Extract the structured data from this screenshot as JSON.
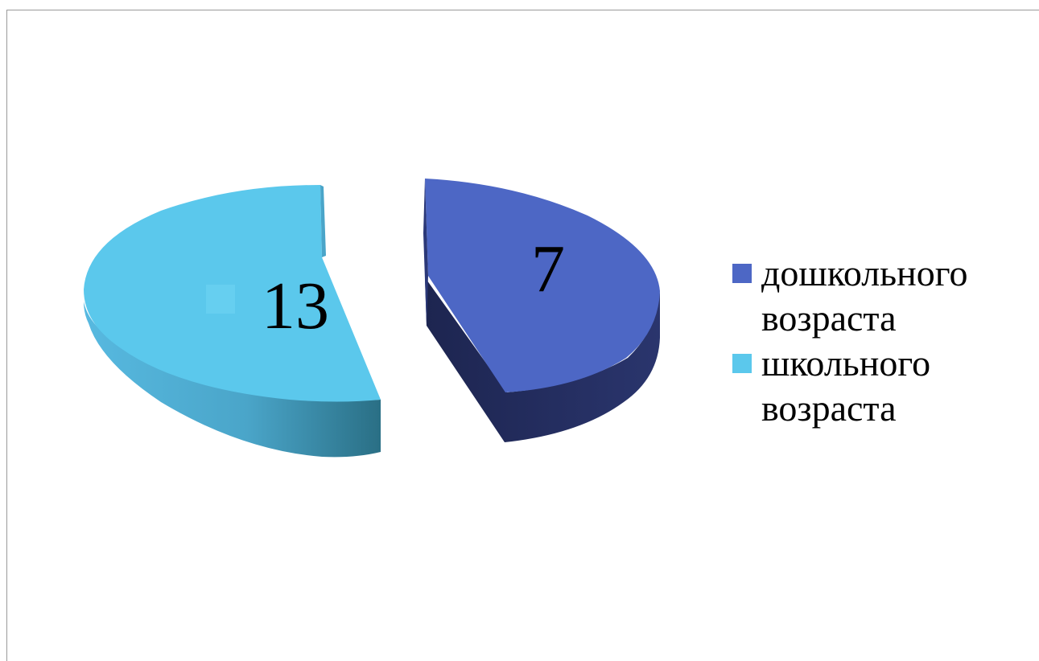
{
  "chart_data": {
    "type": "pie",
    "title": "",
    "slices": [
      {
        "label": "дошкольного возраста",
        "value": 7,
        "color": "#4d67c5",
        "side_color": "#222a5a"
      },
      {
        "label": "школьного возраста",
        "value": 13,
        "color": "#5bc8ec",
        "side_color": "#3a8fb0"
      }
    ],
    "data_labels": [
      "7",
      "13"
    ],
    "legend_position": "right",
    "style": "3d-exploded"
  }
}
